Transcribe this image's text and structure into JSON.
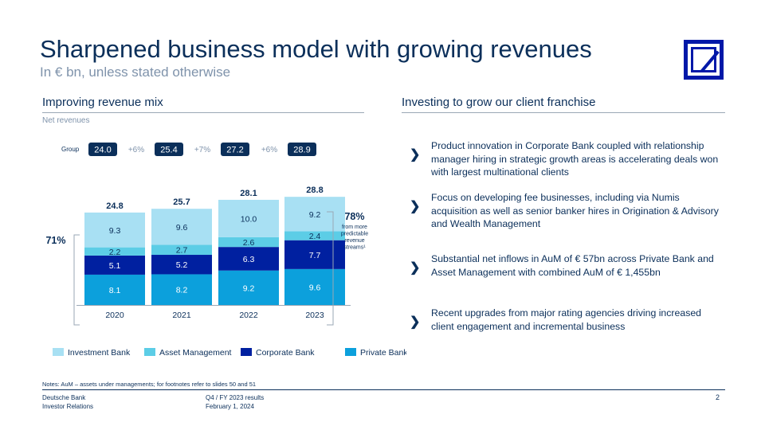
{
  "title": "Sharpened business model with growing revenues",
  "subtitle": "In € bn, unless stated otherwise",
  "left_section": {
    "heading": "Improving revenue mix",
    "sublabel": "Net revenues"
  },
  "right_section": {
    "heading": "Investing to grow our client franchise",
    "bullets": [
      "Product innovation in Corporate Bank coupled with relationship manager hiring in strategic growth areas is accelerating deals won with largest multinational clients",
      "Focus on developing fee businesses, including via Numis acquisition as well as senior banker hires in Origination & Advisory and Wealth Management",
      "Substantial net inflows in AuM of € 57bn across Private Bank and Asset Management with combined AuM of € 1,455bn",
      "Recent upgrades from major rating agencies driving increased client engagement and incremental business"
    ]
  },
  "chart_data": {
    "type": "bar",
    "stacked": true,
    "categories": [
      "2020",
      "2021",
      "2022",
      "2023"
    ],
    "series": [
      {
        "name": "Private Bank",
        "values": [
          8.1,
          8.2,
          9.2,
          9.6
        ],
        "color": "#0ca0dc",
        "label_color": "#ffffff"
      },
      {
        "name": "Corporate Bank",
        "values": [
          5.1,
          5.2,
          6.3,
          7.7
        ],
        "color": "#0020a0",
        "label_color": "#ffffff"
      },
      {
        "name": "Asset Management",
        "values": [
          2.2,
          2.7,
          2.6,
          2.4
        ],
        "color": "#5ccde6",
        "label_color": "#0b2f5a"
      },
      {
        "name": "Investment Bank",
        "values": [
          9.3,
          9.6,
          10.0,
          9.2
        ],
        "color": "#a8e0f3",
        "label_color": "#0b2f5a"
      }
    ],
    "totals": [
      "24.8",
      "25.7",
      "28.1",
      "28.8"
    ],
    "legend_order": [
      "Investment Bank",
      "Asset Management",
      "Corporate Bank",
      "Private Bank"
    ],
    "legend_position": "bottom",
    "group": {
      "label": "Group",
      "values": [
        "24.0",
        "25.4",
        "27.2",
        "28.9"
      ],
      "growth": [
        "+6%",
        "+7%",
        "+6%"
      ]
    },
    "annotations": {
      "left_share": "71%",
      "right_share": "78%",
      "right_share_caption": [
        "from more",
        "predictable",
        "revenue",
        "streams¹"
      ]
    }
  },
  "notes": "Notes: AuM – assets under managements; for footnotes refer to slides 50 and 51",
  "footer": {
    "org": [
      "Deutsche Bank",
      "Investor Relations"
    ],
    "event": [
      "Q4 / FY 2023 results",
      "February 1, 2024"
    ],
    "page": "2"
  }
}
